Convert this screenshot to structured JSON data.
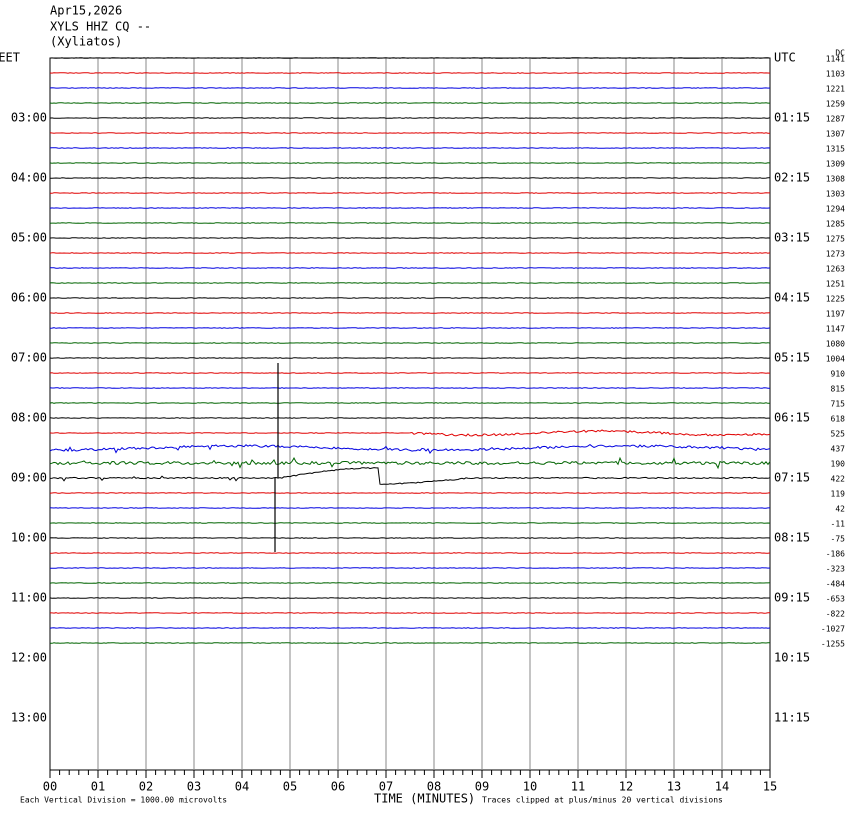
{
  "header": {
    "lines": [
      "Apr15,2026",
      "XYLS HHZ CQ --",
      "(Xyliatos)"
    ]
  },
  "left_labels": [
    "EET",
    "03:00",
    "04:00",
    "05:00",
    "06:00",
    "07:00",
    "08:00",
    "09:00",
    "10:00",
    "11:00",
    "12:00",
    "13:00"
  ],
  "right_labels": [
    "UTC",
    "01:15",
    "02:15",
    "03:15",
    "04:15",
    "05:15",
    "06:15",
    "07:15",
    "08:15",
    "09:15",
    "10:15",
    "11:15"
  ],
  "dc_header": "DC",
  "dc_values": [
    1141,
    1103,
    1221,
    1259,
    1287,
    1307,
    1315,
    1309,
    1308,
    1303,
    1294,
    1285,
    1275,
    1273,
    1263,
    1251,
    1225,
    1197,
    1147,
    1080,
    1004,
    910,
    815,
    715,
    618,
    525,
    437,
    190,
    422,
    119,
    42,
    -11,
    -75,
    -186,
    -323,
    -484,
    -653,
    -822,
    -1027,
    -1255
  ],
  "x_labels": [
    "00",
    "01",
    "02",
    "03",
    "04",
    "05",
    "06",
    "07",
    "08",
    "09",
    "10",
    "11",
    "12",
    "13",
    "14",
    "15"
  ],
  "footer": {
    "scale_note": "Each Vertical Division = 1000.00 microvolts",
    "x_title": "TIME (MINUTES)",
    "clip_note": "Traces clipped at plus/minus 20 vertical divisions"
  }
}
